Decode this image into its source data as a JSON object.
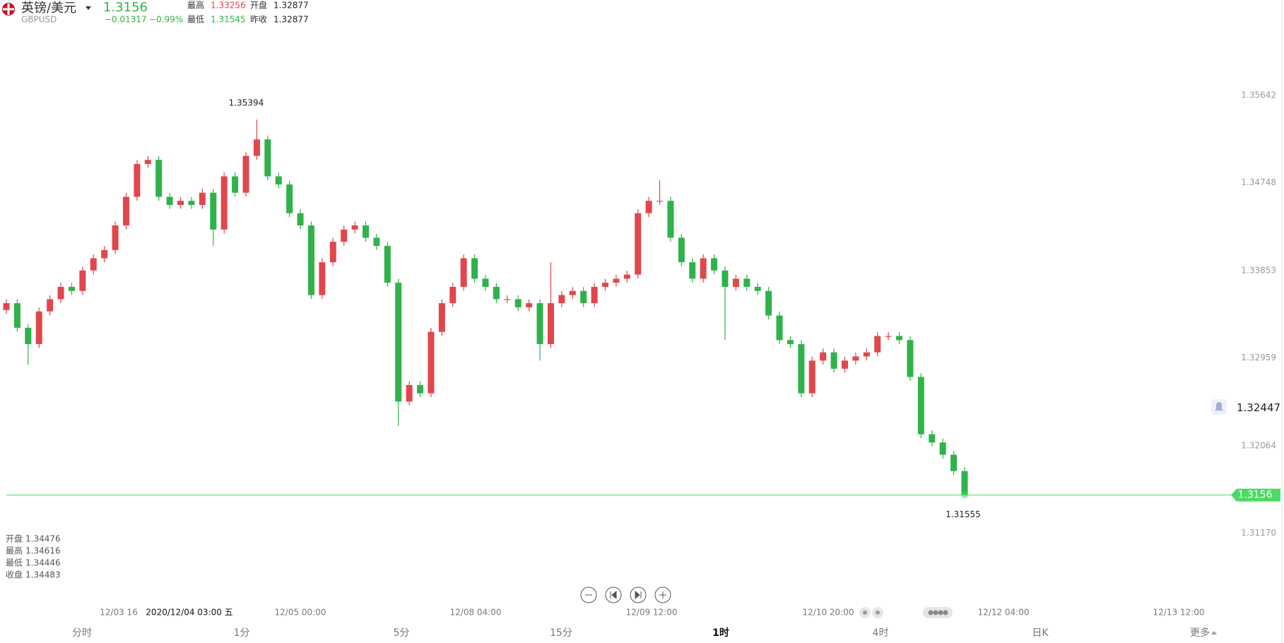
{
  "header": {
    "name": "英镑/美元",
    "symbol": "GBPUSD",
    "price": "1.31560",
    "change": "−0.01317",
    "change_pct": "−0.99%",
    "stats": [
      {
        "label": "最高",
        "value": "1.33256"
      },
      {
        "label": "开盘",
        "value": "1.32877"
      },
      {
        "label": "最低",
        "value": "1.31545"
      },
      {
        "label": "昨收",
        "value": "1.32877"
      }
    ]
  },
  "chart_data": {
    "type": "candlestick",
    "up_color": "#e0474c",
    "down_color": "#2fb24a",
    "last_color": "#4cd964",
    "ylim": [
      1.308,
      1.366
    ],
    "yticks": [
      1.35642,
      1.34748,
      1.33853,
      1.32959,
      1.32064,
      {
        "value": 1.3117,
        "label": "1.31170"
      }
    ],
    "grid": false,
    "alert_price": 1.32447,
    "candles": [
      [
        1.3345,
        1.33559,
        1.3341,
        1.33519
      ],
      [
        1.33519,
        1.33559,
        1.33228,
        1.33268
      ],
      [
        1.33268,
        1.33308,
        1.32892,
        1.33101
      ],
      [
        1.33101,
        1.33475,
        1.33061,
        1.33435
      ],
      [
        1.33435,
        1.336,
        1.33395,
        1.3356
      ],
      [
        1.3356,
        1.33726,
        1.3352,
        1.33686
      ],
      [
        1.33686,
        1.33726,
        1.33604,
        1.33644
      ],
      [
        1.33644,
        1.33893,
        1.33604,
        1.33853
      ],
      [
        1.33853,
        1.34018,
        1.33813,
        1.33978
      ],
      [
        1.33978,
        1.34102,
        1.33938,
        1.34062
      ],
      [
        1.34062,
        1.34353,
        1.34022,
        1.34313
      ],
      [
        1.34313,
        1.34645,
        1.34273,
        1.34605
      ],
      [
        1.34605,
        1.3498,
        1.34565,
        1.3494
      ],
      [
        1.3494,
        1.35022,
        1.349,
        1.34982
      ],
      [
        1.34982,
        1.35022,
        1.34565,
        1.34605
      ],
      [
        1.34605,
        1.34645,
        1.34482,
        1.34522
      ],
      [
        1.34522,
        1.34604,
        1.34482,
        1.34564
      ],
      [
        1.34564,
        1.34604,
        1.34482,
        1.34522
      ],
      [
        1.34522,
        1.34687,
        1.34482,
        1.34647
      ],
      [
        1.34647,
        1.34687,
        1.34104,
        1.34271
      ],
      [
        1.34271,
        1.34854,
        1.34231,
        1.34814
      ],
      [
        1.34814,
        1.34854,
        1.34607,
        1.34647
      ],
      [
        1.34647,
        1.35063,
        1.34607,
        1.35023
      ],
      [
        1.35023,
        1.35394,
        1.34983,
        1.35191
      ],
      [
        1.35191,
        1.35231,
        1.34774,
        1.34814
      ],
      [
        1.34814,
        1.34854,
        1.34691,
        1.34731
      ],
      [
        1.34731,
        1.34771,
        1.34398,
        1.34438
      ],
      [
        1.34438,
        1.34478,
        1.34273,
        1.34313
      ],
      [
        1.34313,
        1.34353,
        1.33562,
        1.33602
      ],
      [
        1.33602,
        1.33977,
        1.33562,
        1.33937
      ],
      [
        1.33937,
        1.34186,
        1.33897,
        1.34146
      ],
      [
        1.34146,
        1.34311,
        1.34106,
        1.34271
      ],
      [
        1.34271,
        1.34353,
        1.34231,
        1.34313
      ],
      [
        1.34313,
        1.34353,
        1.34147,
        1.34187
      ],
      [
        1.34187,
        1.34227,
        1.34064,
        1.34104
      ],
      [
        1.34104,
        1.34144,
        1.33688,
        1.33728
      ],
      [
        1.33728,
        1.33768,
        1.32265,
        1.32515
      ],
      [
        1.32515,
        1.32723,
        1.32475,
        1.32683
      ],
      [
        1.32683,
        1.32723,
        1.32559,
        1.32599
      ],
      [
        1.32599,
        1.33266,
        1.32559,
        1.33226
      ],
      [
        1.33226,
        1.33559,
        1.33186,
        1.33519
      ],
      [
        1.33519,
        1.33726,
        1.33479,
        1.33686
      ],
      [
        1.33686,
        1.34018,
        1.33646,
        1.33978
      ],
      [
        1.33978,
        1.34018,
        1.33729,
        1.33769
      ],
      [
        1.33769,
        1.33809,
        1.33646,
        1.33686
      ],
      [
        1.33686,
        1.33726,
        1.3352,
        1.3356
      ],
      [
        1.3356,
        1.336,
        1.3352,
        1.3356
      ],
      [
        1.3356,
        1.336,
        1.33437,
        1.33477
      ],
      [
        1.33477,
        1.33559,
        1.33437,
        1.33519
      ],
      [
        1.33519,
        1.33559,
        1.32933,
        1.33101
      ],
      [
        1.33101,
        1.33937,
        1.33061,
        1.33519
      ],
      [
        1.33519,
        1.33642,
        1.33479,
        1.33602
      ],
      [
        1.33602,
        1.33684,
        1.33562,
        1.33644
      ],
      [
        1.33644,
        1.33684,
        1.33479,
        1.33519
      ],
      [
        1.33519,
        1.33726,
        1.33479,
        1.33686
      ],
      [
        1.33686,
        1.33768,
        1.33646,
        1.33728
      ],
      [
        1.33728,
        1.33809,
        1.33688,
        1.33769
      ],
      [
        1.33769,
        1.33851,
        1.33729,
        1.33811
      ],
      [
        1.33811,
        1.34478,
        1.33771,
        1.34438
      ],
      [
        1.34438,
        1.34604,
        1.34398,
        1.34564
      ],
      [
        1.34564,
        1.34773,
        1.34524,
        1.34564
      ],
      [
        1.34564,
        1.34604,
        1.34147,
        1.34187
      ],
      [
        1.34187,
        1.34227,
        1.33897,
        1.33937
      ],
      [
        1.33937,
        1.33977,
        1.33729,
        1.33769
      ],
      [
        1.33769,
        1.34018,
        1.33729,
        1.33978
      ],
      [
        1.33978,
        1.34018,
        1.33813,
        1.33853
      ],
      [
        1.33853,
        1.33893,
        1.33142,
        1.33686
      ],
      [
        1.33686,
        1.33809,
        1.33646,
        1.33769
      ],
      [
        1.33769,
        1.33809,
        1.33646,
        1.33686
      ],
      [
        1.33686,
        1.33726,
        1.33604,
        1.33644
      ],
      [
        1.33644,
        1.33684,
        1.33353,
        1.33393
      ],
      [
        1.33393,
        1.33433,
        1.33102,
        1.33142
      ],
      [
        1.33142,
        1.33182,
        1.33061,
        1.33101
      ],
      [
        1.33101,
        1.33141,
        1.32559,
        1.32599
      ],
      [
        1.32599,
        1.32973,
        1.32559,
        1.32933
      ],
      [
        1.32933,
        1.33057,
        1.32893,
        1.33017
      ],
      [
        1.33017,
        1.33057,
        1.3281,
        1.3285
      ],
      [
        1.3285,
        1.32973,
        1.3281,
        1.32933
      ],
      [
        1.32933,
        1.33015,
        1.32893,
        1.32975
      ],
      [
        1.32975,
        1.33057,
        1.32935,
        1.33017
      ],
      [
        1.33017,
        1.33224,
        1.32977,
        1.33184
      ],
      [
        1.33184,
        1.33224,
        1.33144,
        1.33184
      ],
      [
        1.33184,
        1.33224,
        1.33102,
        1.33142
      ],
      [
        1.33142,
        1.33182,
        1.32726,
        1.32766
      ],
      [
        1.32766,
        1.32806,
        1.32141,
        1.32181
      ],
      [
        1.32181,
        1.32221,
        1.32057,
        1.32097
      ],
      [
        1.32097,
        1.32137,
        1.31932,
        1.31972
      ],
      [
        1.31972,
        1.32012,
        1.31765,
        1.31805
      ],
      [
        1.31805,
        1.31845,
        1.31555,
        1.3156
      ]
    ]
  },
  "crosshair_info": [
    {
      "label": "开盘",
      "value": "1.34476"
    },
    {
      "label": "最高",
      "value": "1.34616"
    },
    {
      "label": "最低",
      "value": "1.34446"
    },
    {
      "label": "收盘",
      "value": "1.34483"
    }
  ],
  "time_labels": [
    "12/03 16",
    "2020/12/04 03:00 五",
    "12/05 00:00",
    "12/08 04:00",
    "12/09 12:00",
    "12/10 20:00",
    "12/12 04:00",
    "12/13 12:00"
  ],
  "tabs": [
    "分时",
    "1分",
    "5分",
    "15分",
    "1时",
    "4时",
    "日K",
    "更多"
  ]
}
